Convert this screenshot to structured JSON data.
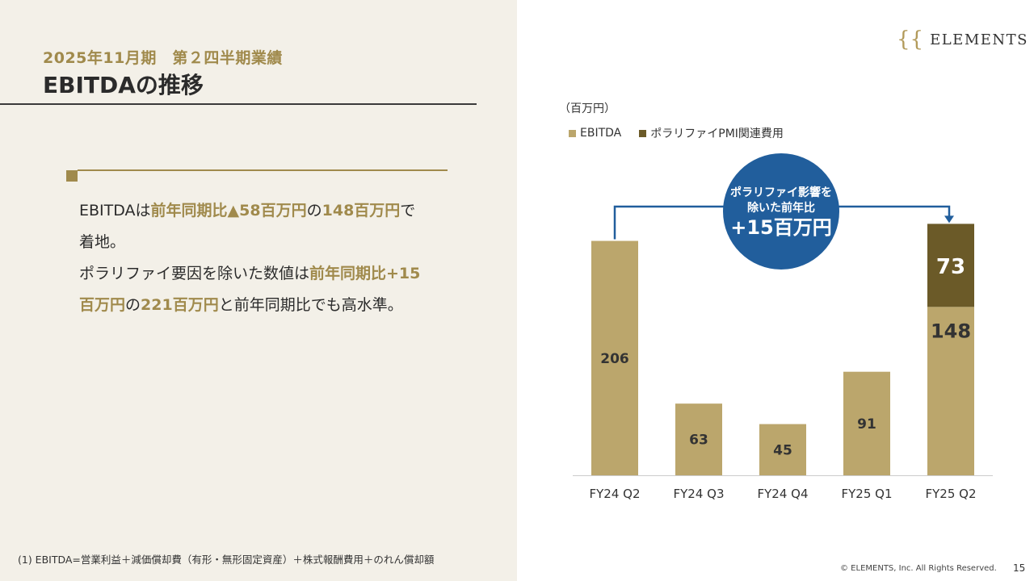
{
  "header": {
    "subtitle": "2025年11月期　第２四半期業績",
    "title": "EBITDAの推移"
  },
  "summary": {
    "line1_a": "EBITDAは",
    "line1_b": "前年同期比▲58百万円",
    "line1_c": "の",
    "line1_d": "148百万円",
    "line1_e": "で",
    "line2": "着地。",
    "line3_a": "ポラリファイ要因を除いた数値は",
    "line3_b": "前年同期比+15",
    "line4_a": "百万円",
    "line4_b": "の",
    "line4_c": "221百万円",
    "line4_d": "と前年同期比でも高水準。"
  },
  "footnote": "(1) EBITDA=営業利益＋減価償却費（有形・無形固定資産）＋株式報酬費用＋のれん償却額",
  "logo": {
    "mark": "{{",
    "text": "ELEMENTS"
  },
  "copyright": "© ELEMENTS, Inc. All Rights Reserved.",
  "page_number": "15",
  "colors": {
    "ebitda": "#bba66c",
    "pmi": "#6b5a28",
    "callout": "#215e9c",
    "accent": "#a08a4c"
  },
  "chart_data": {
    "type": "bar",
    "stacked": true,
    "unit_label": "（百万円）",
    "categories": [
      "FY24 Q2",
      "FY24 Q3",
      "FY24 Q4",
      "FY25 Q1",
      "FY25 Q2"
    ],
    "series": [
      {
        "name": "EBITDA",
        "values": [
          206,
          63,
          45,
          91,
          148
        ]
      },
      {
        "name": "ポラリファイPMI関連費用",
        "values": [
          0,
          0,
          0,
          0,
          73
        ]
      }
    ],
    "legend_position": "top-left",
    "callout": {
      "line1": "ポラリファイ影響を",
      "line2": "除いた前年比",
      "value": "+15百万円"
    }
  }
}
